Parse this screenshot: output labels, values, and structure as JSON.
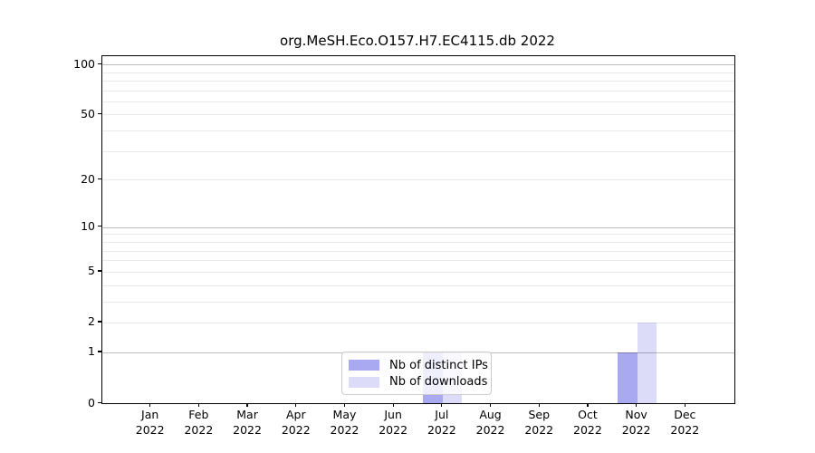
{
  "title": "org.MeSH.Eco.O157.H7.EC4115.db 2022",
  "chart_data": {
    "type": "bar",
    "title": "org.MeSH.Eco.O157.H7.EC4115.db 2022",
    "categories": [
      "Jan 2022",
      "Feb 2022",
      "Mar 2022",
      "Apr 2022",
      "May 2022",
      "Jun 2022",
      "Jul 2022",
      "Aug 2022",
      "Sep 2022",
      "Oct 2022",
      "Nov 2022",
      "Dec 2022"
    ],
    "series": [
      {
        "name": "Nb of distinct IPs",
        "color": "#a9a9f1",
        "values": [
          0,
          0,
          0,
          0,
          0,
          0,
          1,
          0,
          0,
          0,
          1,
          0
        ]
      },
      {
        "name": "Nb of downloads",
        "color": "#dcdcf8",
        "values": [
          0,
          0,
          0,
          0,
          0,
          0,
          1,
          0,
          0,
          0,
          2,
          0
        ]
      }
    ],
    "xlabel": "",
    "ylabel": "",
    "yscale": "log1p",
    "ylim": [
      0,
      112
    ],
    "y_ticks": [
      0,
      1,
      2,
      5,
      10,
      20,
      50,
      100
    ],
    "grid_major": [
      1,
      10,
      100
    ],
    "grid_minor": [
      2,
      3,
      4,
      5,
      6,
      7,
      8,
      9,
      20,
      30,
      40,
      50,
      60,
      70,
      80,
      90
    ],
    "grid": "horizontal",
    "legend_position": "lower center",
    "bar_group": "side-by-side"
  }
}
